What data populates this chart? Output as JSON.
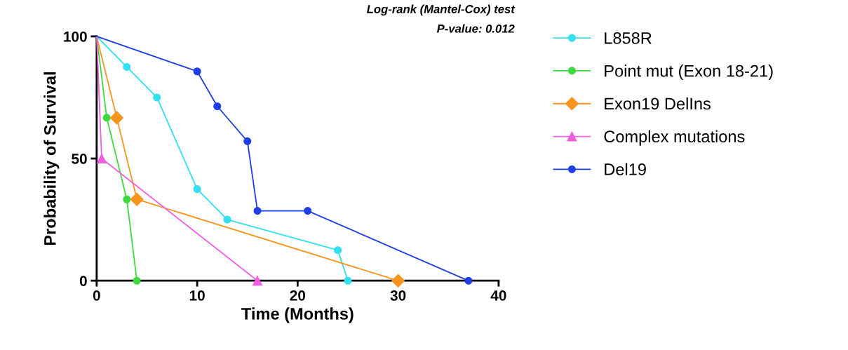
{
  "chart_data": {
    "type": "line",
    "xlabel": "Time (Months)",
    "ylabel": "Probability of Survival",
    "annotations": [
      "Log-rank (Mantel-Cox) test",
      "P-value: 0.012"
    ],
    "xlim": [
      0,
      40
    ],
    "ylim": [
      0,
      100
    ],
    "xticks": [
      0,
      10,
      20,
      30,
      40
    ],
    "yticks": [
      0,
      50,
      100
    ],
    "grid": false,
    "legend": "right",
    "line_style": "solid",
    "series": [
      {
        "name": "L858R",
        "color": "#33dff0",
        "marker": "circle",
        "x": [
          0,
          3,
          6,
          10,
          13,
          24,
          25
        ],
        "values": [
          100,
          87.5,
          75,
          37.5,
          25,
          12.5,
          0
        ]
      },
      {
        "name": "Point mut (Exon 18-21)",
        "color": "#3fd93f",
        "marker": "circle",
        "x": [
          0,
          1,
          3,
          4
        ],
        "values": [
          100,
          66.7,
          33.3,
          0
        ]
      },
      {
        "name": "Exon19 DelIns",
        "color": "#f7941d",
        "marker": "diamond",
        "x": [
          0,
          2,
          4,
          30
        ],
        "values": [
          100,
          66.7,
          33.3,
          0
        ]
      },
      {
        "name": "Complex mutations",
        "color": "#ef5fe0",
        "marker": "triangle",
        "x": [
          0,
          0.5,
          16
        ],
        "values": [
          100,
          50,
          0
        ]
      },
      {
        "name": "Del19",
        "color": "#1f3fe6",
        "marker": "circle",
        "x": [
          0,
          10,
          12,
          15,
          16,
          21,
          37
        ],
        "values": [
          100,
          85.7,
          71.4,
          57.1,
          28.6,
          28.6,
          0
        ]
      }
    ]
  }
}
